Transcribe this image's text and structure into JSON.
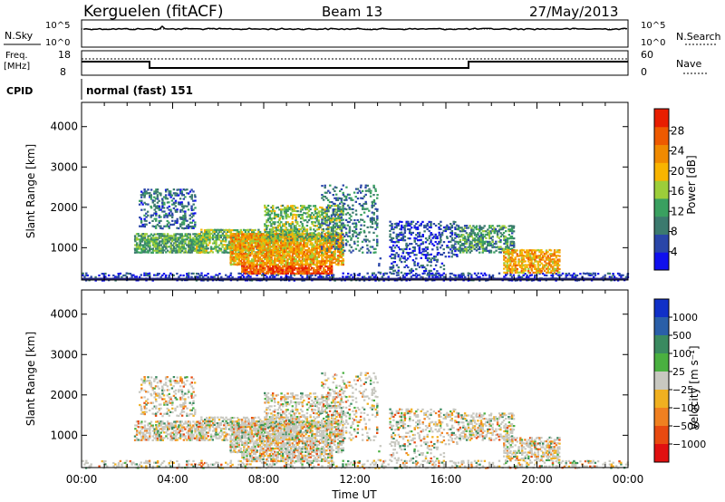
{
  "header": {
    "station": "Kerguelen (fitACF)",
    "beam": "Beam 13",
    "date": "27/May/2013"
  },
  "nsky_panel": {
    "left_label": "N.Sky",
    "right_label": "N.Search",
    "ticks_left": [
      "10^5",
      "10^0"
    ],
    "ticks_right": [
      "10^5",
      "10^0"
    ]
  },
  "freq_panel": {
    "left_label_1": "Freq.",
    "left_label_2": "[MHz]",
    "right_label": "Nave",
    "ticks_left": [
      "18",
      "8"
    ],
    "ticks_right": [
      "60",
      "0"
    ]
  },
  "cpid": {
    "label": "CPID",
    "value": "normal (fast) 151"
  },
  "chart_data": [
    {
      "type": "heatmap",
      "title": "",
      "ylabel": "Slant Range [km]",
      "xlabel": "",
      "ylim": [
        200,
        4600
      ],
      "y_ticks": [
        "1000",
        "2000",
        "3000",
        "4000"
      ],
      "colorbar": {
        "label": "Power [dB]",
        "ticks": [
          "4",
          "8",
          "12",
          "16",
          "20",
          "24",
          "28"
        ],
        "colors": [
          "#1010ee",
          "#2a46a8",
          "#3c7a6e",
          "#3aa060",
          "#9cce3a",
          "#f8b400",
          "#f08a00",
          "#ee5a00",
          "#e81e00"
        ]
      }
    },
    {
      "type": "heatmap",
      "title": "",
      "ylabel": "Slant Range [km]",
      "xlabel": "Time UT",
      "ylim": [
        200,
        4600
      ],
      "y_ticks": [
        "1000",
        "2000",
        "3000",
        "4000"
      ],
      "x_ticks": [
        "00:00",
        "04:00",
        "08:00",
        "12:00",
        "16:00",
        "20:00",
        "00:00"
      ],
      "colorbar": {
        "label": "Velocity [m s⁻¹]",
        "ticks": [
          "1000",
          "500",
          "100",
          "25",
          "−25",
          "−100",
          "−500",
          "−1000"
        ],
        "colors": [
          "#1030c8",
          "#2a5fa8",
          "#3a8a60",
          "#4ab040",
          "#c8c8c0",
          "#f0b020",
          "#f08020",
          "#e84a10",
          "#e01010"
        ]
      }
    }
  ]
}
